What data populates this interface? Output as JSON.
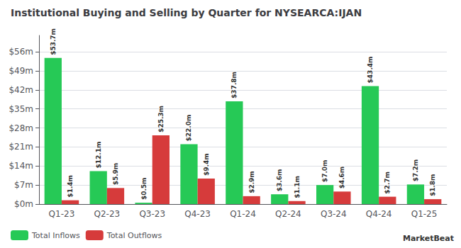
{
  "chart_data": {
    "type": "bar",
    "title": "Institutional Buying and Selling by Quarter for NYSEARCA:IJAN",
    "categories": [
      "Q1-23",
      "Q2-23",
      "Q3-23",
      "Q4-23",
      "Q1-24",
      "Q2-24",
      "Q3-24",
      "Q4-24",
      "Q1-25"
    ],
    "series": [
      {
        "name": "Total Inflows",
        "color": "#26c956",
        "values": [
          53.7,
          12.1,
          0.5,
          22.0,
          37.8,
          3.6,
          7.0,
          43.4,
          7.2
        ],
        "value_labels": [
          "$53.7m",
          "$12.1m",
          "$0.5m",
          "$22.0m",
          "$37.8m",
          "$3.6m",
          "$7.0m",
          "$43.4m",
          "$7.2m"
        ]
      },
      {
        "name": "Total Outflows",
        "color": "#d63b3b",
        "values": [
          1.4,
          5.9,
          25.3,
          9.4,
          2.9,
          1.1,
          4.6,
          2.7,
          1.8
        ],
        "value_labels": [
          "$1.4m",
          "$5.9m",
          "$25.3m",
          "$9.4m",
          "$2.9m",
          "$1.1m",
          "$4.6m",
          "$2.7m",
          "$1.8m"
        ]
      }
    ],
    "ylim": [
      0,
      62
    ],
    "yticks": [
      {
        "value": 0,
        "label": "$0m"
      },
      {
        "value": 7,
        "label": "$7m"
      },
      {
        "value": 14,
        "label": "$14m"
      },
      {
        "value": 21,
        "label": "$21m"
      },
      {
        "value": 28,
        "label": "$28m"
      },
      {
        "value": 35,
        "label": "$35m"
      },
      {
        "value": 42,
        "label": "$42m"
      },
      {
        "value": 49,
        "label": "$49m"
      },
      {
        "value": 56,
        "label": "$56m"
      }
    ],
    "grid": true,
    "legend": "lower left",
    "data_labels": true,
    "annotations": [
      "MarketBeat"
    ]
  }
}
